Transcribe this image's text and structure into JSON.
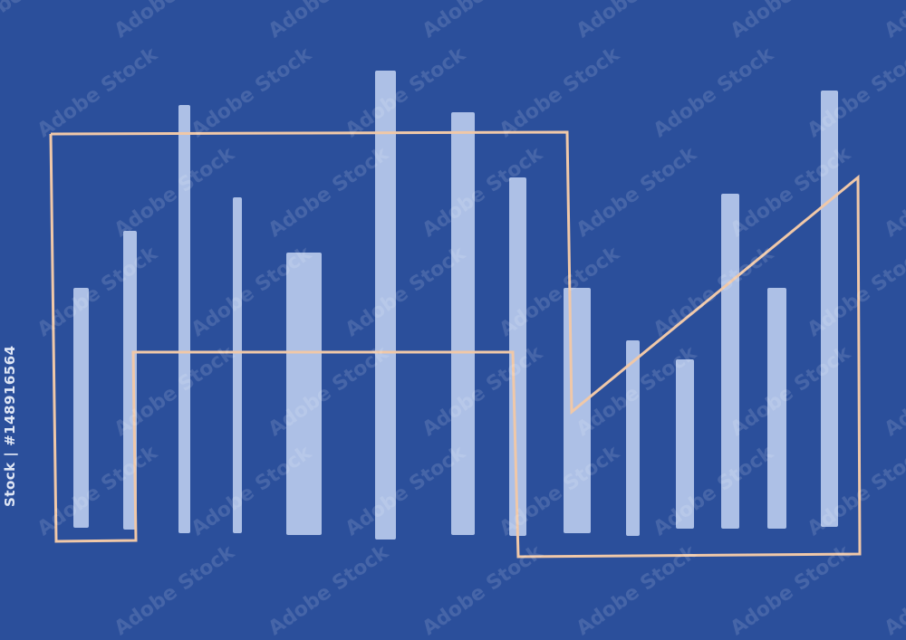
{
  "colors": {
    "background": "#2b4f9b",
    "bars": "#adc0e6",
    "line": "#f0c8a8"
  },
  "watermark": {
    "text": "Adobe Stock",
    "id_label": "Stock | #148916564"
  }
}
